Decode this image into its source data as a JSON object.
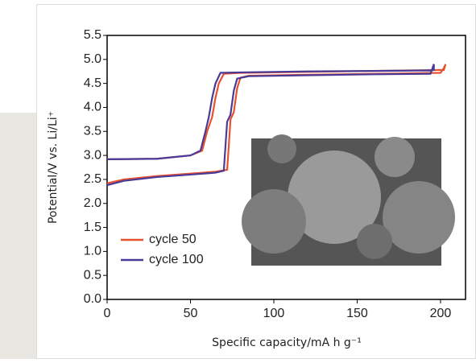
{
  "chart_data": {
    "type": "line",
    "xlabel": "Specific capacity/mA h g⁻¹",
    "ylabel": "Potential/V vs. Li/Li⁺",
    "xlim": [
      0,
      215
    ],
    "xticks": [
      0,
      50,
      100,
      150,
      200
    ],
    "ylim": [
      0,
      5.5
    ],
    "yticks": [
      {
        "value": 0,
        "label": "0.0"
      },
      0.5,
      {
        "value": 1,
        "label": "1.0"
      },
      1.5,
      {
        "value": 2,
        "label": "2.0"
      },
      2.5,
      {
        "value": 3,
        "label": "3.0"
      },
      3.5,
      {
        "value": 4,
        "label": "4.0"
      },
      4.5,
      {
        "value": 5,
        "label": "5.0"
      },
      5.5
    ],
    "legend": "lower left",
    "series": [
      {
        "name": "cycle 50",
        "color": "#e8502e",
        "x": [
          0,
          10,
          30,
          50,
          65,
          72,
          73,
          74,
          76,
          78,
          80,
          85,
          120,
          160,
          200,
          202,
          203,
          202,
          200,
          160,
          120,
          80,
          70,
          67,
          65,
          63,
          60,
          57,
          50,
          30,
          0
        ],
        "values": [
          2.42,
          2.5,
          2.57,
          2.62,
          2.66,
          2.7,
          3.2,
          3.75,
          3.9,
          4.4,
          4.62,
          4.66,
          4.68,
          4.7,
          4.72,
          4.82,
          4.9,
          4.78,
          4.78,
          4.76,
          4.74,
          4.72,
          4.7,
          4.5,
          4.2,
          3.8,
          3.5,
          3.1,
          3.0,
          2.93,
          2.92
        ]
      },
      {
        "name": "cycle 100",
        "color": "#4a3a98",
        "x": [
          0,
          10,
          30,
          50,
          65,
          70,
          71,
          72,
          74,
          76,
          78,
          85,
          120,
          160,
          194,
          196,
          196,
          194,
          160,
          120,
          80,
          68,
          65,
          63,
          61,
          59,
          56,
          50,
          30,
          0
        ],
        "values": [
          2.38,
          2.47,
          2.55,
          2.6,
          2.64,
          2.68,
          3.2,
          3.7,
          3.85,
          4.35,
          4.6,
          4.65,
          4.67,
          4.69,
          4.7,
          4.9,
          4.78,
          4.77,
          4.76,
          4.75,
          4.73,
          4.72,
          4.5,
          4.2,
          3.8,
          3.5,
          3.1,
          3.0,
          2.93,
          2.92
        ]
      }
    ]
  }
}
